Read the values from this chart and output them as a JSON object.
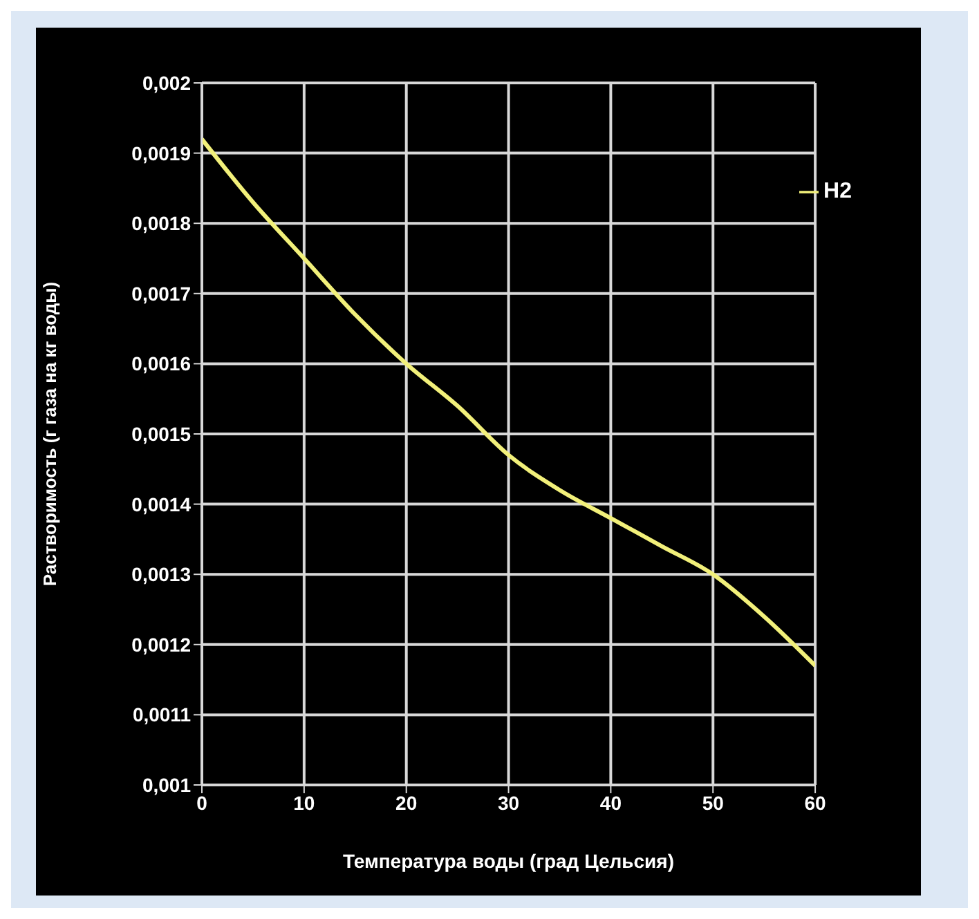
{
  "chart_data": {
    "type": "line",
    "xlabel": "Температура воды (град Цельсия)",
    "ylabel": "Растворимость (г газа на кг воды)",
    "x": [
      0,
      5,
      10,
      15,
      20,
      25,
      30,
      35,
      40,
      45,
      50,
      55,
      60
    ],
    "series": [
      {
        "name": "H2",
        "color": "#f2f07a",
        "values": [
          0.00192,
          0.00183,
          0.00175,
          0.00167,
          0.0016,
          0.00154,
          0.00147,
          0.00142,
          0.00138,
          0.00134,
          0.0013,
          0.00124,
          0.00117
        ]
      }
    ],
    "xlim": [
      0,
      60
    ],
    "xticks": [
      0,
      10,
      20,
      30,
      40,
      50,
      60
    ],
    "ylim": [
      0.001,
      0.002
    ],
    "yticks": [
      {
        "value": 0.001,
        "label": "0,001"
      },
      {
        "value": 0.0011,
        "label": "0,0011"
      },
      {
        "value": 0.0012,
        "label": "0,0012"
      },
      {
        "value": 0.0013,
        "label": "0,0013"
      },
      {
        "value": 0.0014,
        "label": "0,0014"
      },
      {
        "value": 0.0015,
        "label": "0,0015"
      },
      {
        "value": 0.0016,
        "label": "0,0016"
      },
      {
        "value": 0.0017,
        "label": "0,0017"
      },
      {
        "value": 0.0018,
        "label": "0,0018"
      },
      {
        "value": 0.0019,
        "label": "0,0019"
      },
      {
        "value": 0.002,
        "label": "0,002"
      }
    ],
    "grid": true,
    "legend": "top right",
    "marker": "none",
    "line_style": "solid"
  }
}
